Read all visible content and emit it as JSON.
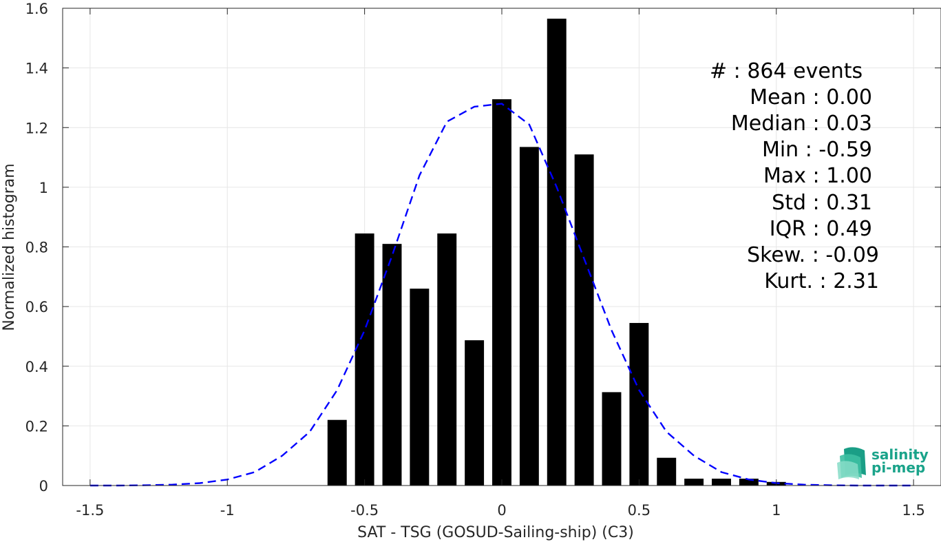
{
  "chart_data": {
    "type": "bar",
    "xlabel": "SAT - TSG (GOSUD-Sailing-ship) (C3)",
    "ylabel": "Normalized histogram",
    "xlim": [
      -1.6,
      1.6
    ],
    "ylim": [
      0,
      1.6
    ],
    "x_ticks": [
      "-1.5",
      "-1",
      "-0.5",
      "0",
      "0.5",
      "1",
      "1.5"
    ],
    "y_ticks": [
      "0",
      "0.2",
      "0.4",
      "0.6",
      "0.8",
      "1",
      "1.2",
      "1.4",
      "1.6"
    ],
    "grid": true,
    "bin_width": 0.1,
    "bar_color": "#000000",
    "bins": [
      {
        "x": -0.6,
        "y": 0.22
      },
      {
        "x": -0.5,
        "y": 0.845
      },
      {
        "x": -0.4,
        "y": 0.81
      },
      {
        "x": -0.3,
        "y": 0.66
      },
      {
        "x": -0.2,
        "y": 0.845
      },
      {
        "x": -0.1,
        "y": 0.487
      },
      {
        "x": 0.0,
        "y": 1.295
      },
      {
        "x": 0.1,
        "y": 1.135
      },
      {
        "x": 0.2,
        "y": 1.565
      },
      {
        "x": 0.3,
        "y": 1.11
      },
      {
        "x": 0.4,
        "y": 0.313
      },
      {
        "x": 0.5,
        "y": 0.545
      },
      {
        "x": 0.6,
        "y": 0.093
      },
      {
        "x": 0.7,
        "y": 0.023
      },
      {
        "x": 0.8,
        "y": 0.023
      },
      {
        "x": 0.9,
        "y": 0.023
      },
      {
        "x": 1.0,
        "y": 0.012
      }
    ],
    "fit_curve": {
      "style": "dashed",
      "color": "#0000ff",
      "x": [
        -1.5,
        -1.4,
        -1.3,
        -1.2,
        -1.1,
        -1.0,
        -0.9,
        -0.8,
        -0.7,
        -0.6,
        -0.5,
        -0.4,
        -0.3,
        -0.2,
        -0.1,
        0.0,
        0.1,
        0.2,
        0.3,
        0.4,
        0.5,
        0.6,
        0.7,
        0.8,
        0.9,
        1.0,
        1.1,
        1.2,
        1.3,
        1.4,
        1.5
      ],
      "y": [
        0.0,
        0.0,
        0.001,
        0.003,
        0.008,
        0.02,
        0.045,
        0.1,
        0.18,
        0.32,
        0.52,
        0.77,
        1.04,
        1.22,
        1.27,
        1.28,
        1.21,
        1.0,
        0.76,
        0.52,
        0.32,
        0.18,
        0.1,
        0.045,
        0.02,
        0.008,
        0.003,
        0.001,
        0.0,
        0.0,
        0.0
      ]
    }
  },
  "stats": [
    {
      "label": "#  : 864 events"
    },
    {
      "label": "Mean : 0.00"
    },
    {
      "label": "Median : 0.03"
    },
    {
      "label": "Min : -0.59"
    },
    {
      "label": "Max : 1.00"
    },
    {
      "label": "Std : 0.31"
    },
    {
      "label": "IQR : 0.49"
    },
    {
      "label": "Skew. : -0.09"
    },
    {
      "label": "Kurt. : 2.31"
    }
  ],
  "logo": {
    "line1": "salinity",
    "line2": "pi-mep",
    "color": "#1aa38a"
  }
}
